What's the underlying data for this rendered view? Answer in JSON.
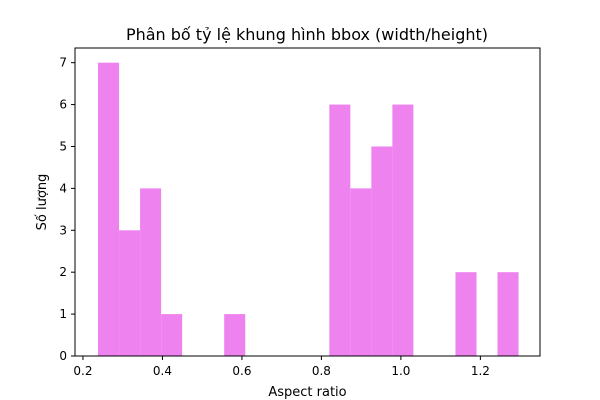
{
  "chart_data": {
    "type": "bar",
    "title": "Phân bố tỷ lệ khung hình bbox (width/height)",
    "xlabel": "Aspect ratio",
    "ylabel": "Số lượng",
    "xlim": [
      0.18,
      1.35
    ],
    "ylim": [
      0,
      7.35
    ],
    "x_ticks": [
      0.2,
      0.4,
      0.6,
      0.8,
      1.0,
      1.2
    ],
    "x_tick_labels": [
      "0.2",
      "0.4",
      "0.6",
      "0.8",
      "1.0",
      "1.2"
    ],
    "y_ticks": [
      0,
      1,
      2,
      3,
      4,
      5,
      6,
      7
    ],
    "y_tick_labels": [
      "0",
      "1",
      "2",
      "3",
      "4",
      "5",
      "6",
      "7"
    ],
    "bin_edges": [
      0.238,
      0.2909,
      0.3438,
      0.3967,
      0.4496,
      0.5025,
      0.5554,
      0.6083,
      0.6612,
      0.7141,
      0.767,
      0.8199,
      0.8728,
      0.9257,
      0.9786,
      1.0315,
      1.0844,
      1.1373,
      1.1902,
      1.2431,
      1.296
    ],
    "values": [
      7,
      3,
      4,
      1,
      0,
      0,
      1,
      0,
      0,
      0,
      0,
      6,
      4,
      5,
      6,
      0,
      0,
      2,
      0,
      2
    ],
    "bar_color": "#ee82ee",
    "grid": false
  }
}
